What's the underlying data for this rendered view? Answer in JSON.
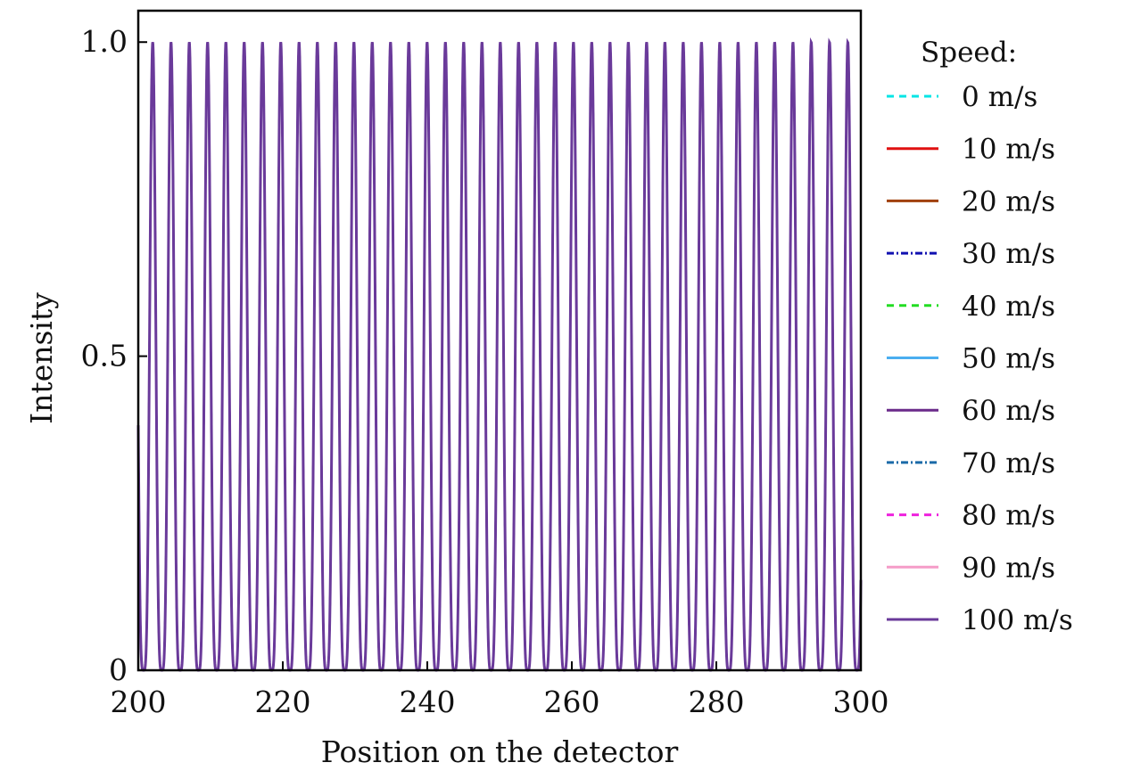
{
  "chart_data": {
    "type": "line",
    "title": "",
    "xlabel": "Position on the detector",
    "ylabel": "Intensity",
    "xlim": [
      200,
      300
    ],
    "ylim": [
      0,
      1.05
    ],
    "x_ticks": [
      200,
      220,
      240,
      260,
      280,
      300
    ],
    "x_tick_labels": [
      "200",
      "220",
      "240",
      "260",
      "280",
      "300"
    ],
    "y_ticks": [
      0,
      0.5,
      1.0
    ],
    "y_tick_labels": [
      "0",
      "0.5",
      "1.0"
    ],
    "grid": false,
    "legend": {
      "placement": "outside-right",
      "title": "Speed:"
    },
    "waveform": {
      "description_free": true,
      "peaks_x": [
        202,
        204.5,
        207,
        209.6,
        212.1,
        214.6,
        217.2,
        219.7,
        222.2,
        224.8,
        227.3,
        229.8,
        232.4,
        234.9,
        237.4,
        240,
        242.5,
        245,
        247.6,
        250.1,
        252.6,
        255.2,
        257.7,
        260.2,
        262.8,
        265.3,
        267.8,
        270.4,
        272.9,
        275.4,
        278,
        280.5,
        283,
        285.6,
        288.1,
        290.6,
        293.2,
        295.7,
        298.2
      ],
      "peak_intensity": 1.0,
      "min_intensity": 0.0
    },
    "series": [
      {
        "name": "0 m/s",
        "color": "#00e5e5",
        "dash": "8,6"
      },
      {
        "name": "10 m/s",
        "color": "#e01010",
        "dash": ""
      },
      {
        "name": "20 m/s",
        "color": "#a0400a",
        "dash": ""
      },
      {
        "name": "30 m/s",
        "color": "#1010b0",
        "dash": "8,3,2,3"
      },
      {
        "name": "40 m/s",
        "color": "#22dd22",
        "dash": "8,6"
      },
      {
        "name": "50 m/s",
        "color": "#4aaef0",
        "dash": ""
      },
      {
        "name": "60 m/s",
        "color": "#6a2a8a",
        "dash": ""
      },
      {
        "name": "70 m/s",
        "color": "#1a6aa8",
        "dash": "8,3,2,3"
      },
      {
        "name": "80 m/s",
        "color": "#ee22dd",
        "dash": "8,6"
      },
      {
        "name": "90 m/s",
        "color": "#f59cc8",
        "dash": ""
      },
      {
        "name": "100 m/s",
        "color": "#6a3a9a",
        "dash": ""
      }
    ]
  }
}
